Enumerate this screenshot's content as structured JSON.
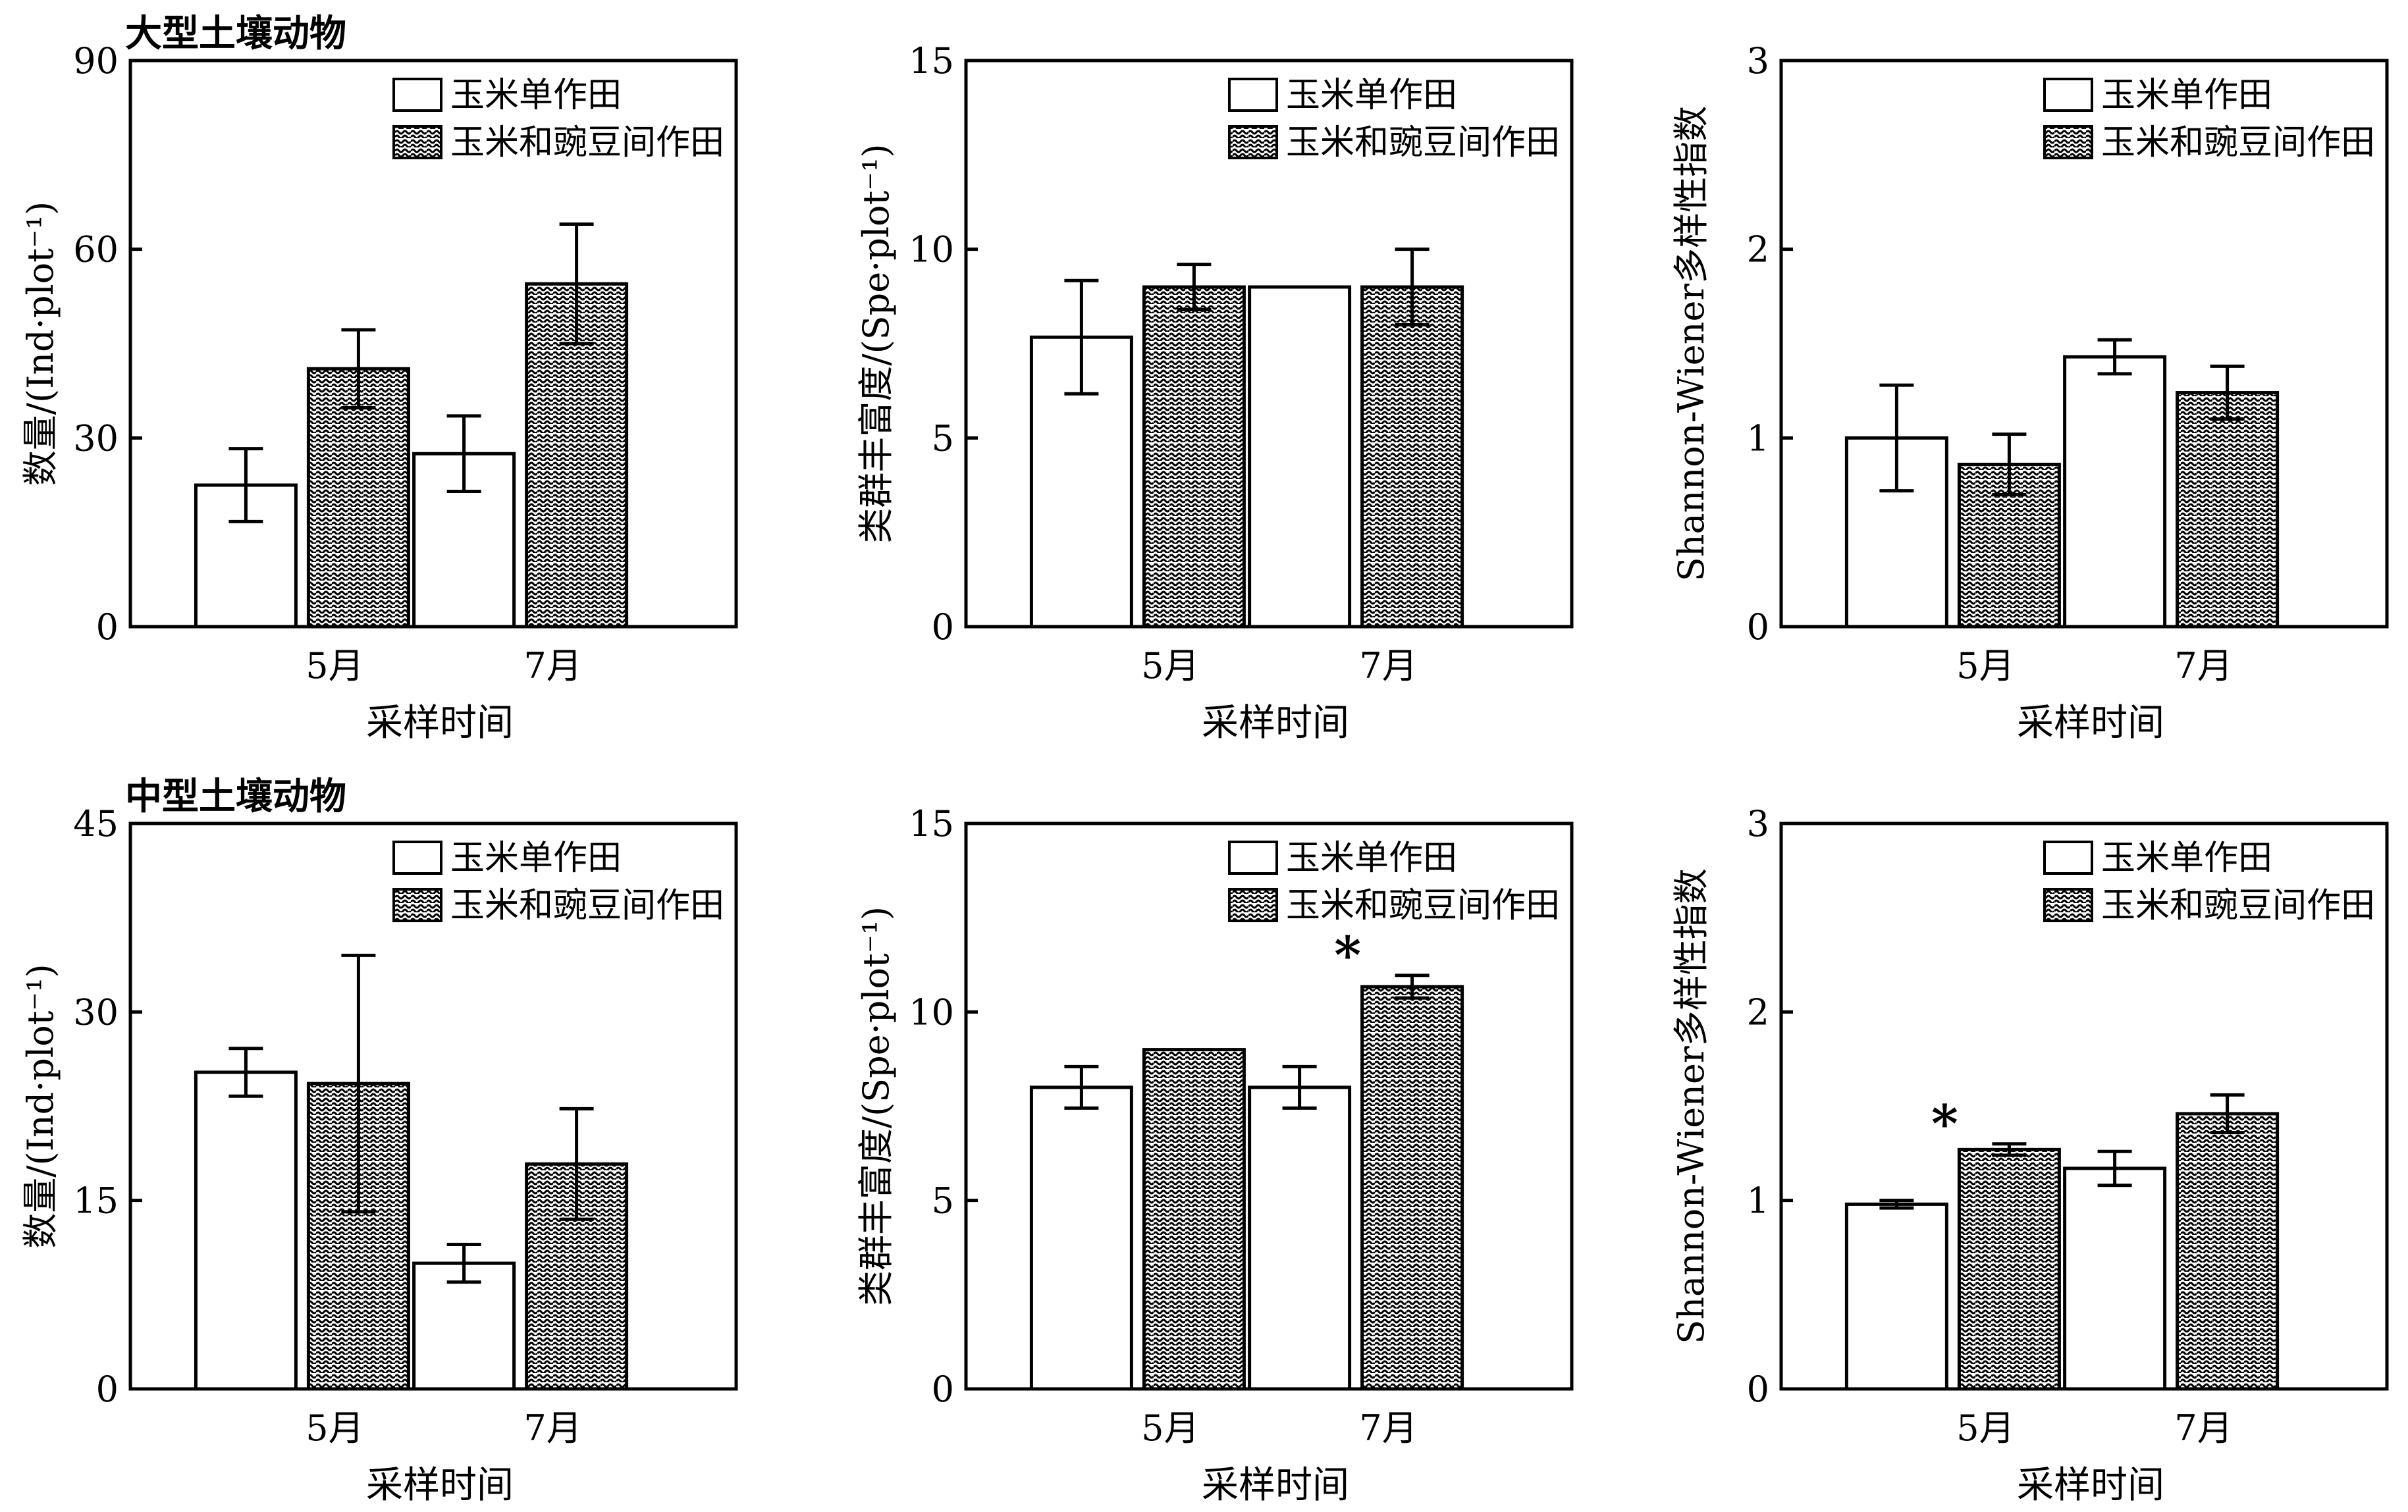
{
  "chart_data": [
    {
      "id": "macro-abundance",
      "type": "bar",
      "group_title": "大型土壤动物",
      "title": "",
      "ylabel": "数量/(Ind·plot⁻¹)",
      "xlabel": "采样时间",
      "categories": [
        "5月",
        "7月"
      ],
      "ylim": [
        0,
        90
      ],
      "yticks": [
        0,
        30,
        60,
        90
      ],
      "legend_position": "top-right",
      "series": [
        {
          "name": "玉米单作田",
          "pattern": "plain",
          "values": [
            22.5,
            27.5
          ],
          "errors": [
            5.8,
            6.0
          ]
        },
        {
          "name": "玉米和豌豆间作田",
          "pattern": "hatched",
          "values": [
            41.0,
            54.5
          ],
          "errors": [
            6.2,
            9.5
          ]
        }
      ],
      "annotations": []
    },
    {
      "id": "macro-richness",
      "type": "bar",
      "title": "",
      "ylabel": "类群丰富度/(Spe·plot⁻¹)",
      "xlabel": "采样时间",
      "categories": [
        "5月",
        "7月"
      ],
      "ylim": [
        0,
        15
      ],
      "yticks": [
        0,
        5,
        10,
        15
      ],
      "legend_position": "top-right",
      "series": [
        {
          "name": "玉米单作田",
          "pattern": "plain",
          "values": [
            7.67,
            9.0
          ],
          "errors": [
            1.5,
            0
          ]
        },
        {
          "name": "玉米和豌豆间作田",
          "pattern": "hatched",
          "values": [
            9.0,
            9.0
          ],
          "errors": [
            0.6,
            1.0
          ]
        }
      ],
      "annotations": []
    },
    {
      "id": "macro-shannon",
      "type": "bar",
      "title": "",
      "ylabel": "Shannon-Wiener多样性指数",
      "xlabel": "采样时间",
      "categories": [
        "5月",
        "7月"
      ],
      "ylim": [
        0,
        3
      ],
      "yticks": [
        0,
        1,
        2,
        3
      ],
      "legend_position": "top-right",
      "series": [
        {
          "name": "玉米单作田",
          "pattern": "plain",
          "values": [
            1.0,
            1.43
          ],
          "errors": [
            0.28,
            0.09
          ]
        },
        {
          "name": "玉米和豌豆间作田",
          "pattern": "hatched",
          "values": [
            0.86,
            1.24
          ],
          "errors": [
            0.16,
            0.14
          ]
        }
      ],
      "annotations": []
    },
    {
      "id": "meso-abundance",
      "type": "bar",
      "group_title": "中型土壤动物",
      "title": "",
      "ylabel": "数量/(Ind·plot⁻¹)",
      "xlabel": "采样时间",
      "categories": [
        "5月",
        "7月"
      ],
      "ylim": [
        0,
        45
      ],
      "yticks": [
        0,
        15,
        30,
        45
      ],
      "legend_position": "top-right",
      "series": [
        {
          "name": "玉米单作田",
          "pattern": "plain",
          "values": [
            25.2,
            10.0
          ],
          "errors": [
            1.9,
            1.5
          ]
        },
        {
          "name": "玉米和豌豆间作田",
          "pattern": "hatched",
          "values": [
            24.3,
            17.9
          ],
          "errors": [
            10.2,
            4.4
          ]
        }
      ],
      "annotations": []
    },
    {
      "id": "meso-richness",
      "type": "bar",
      "title": "",
      "ylabel": "类群丰富度/(Spe·plot⁻¹)",
      "xlabel": "采样时间",
      "categories": [
        "5月",
        "7月"
      ],
      "ylim": [
        0,
        15
      ],
      "yticks": [
        0,
        5,
        10,
        15
      ],
      "legend_position": "top-right",
      "series": [
        {
          "name": "玉米单作田",
          "pattern": "plain",
          "values": [
            8.0,
            8.0
          ],
          "errors": [
            0.55,
            0.55
          ]
        },
        {
          "name": "玉米和豌豆间作田",
          "pattern": "hatched",
          "values": [
            9.0,
            10.67
          ],
          "errors": [
            0,
            0.3
          ]
        }
      ],
      "annotations": [
        {
          "text": "*",
          "category": 1,
          "series": 1
        }
      ]
    },
    {
      "id": "meso-shannon",
      "type": "bar",
      "title": "",
      "ylabel": "Shannon-Wiener多样性指数",
      "xlabel": "采样时间",
      "categories": [
        "5月",
        "7月"
      ],
      "ylim": [
        0,
        3
      ],
      "yticks": [
        0,
        1,
        2,
        3
      ],
      "legend_position": "top-right",
      "series": [
        {
          "name": "玉米单作田",
          "pattern": "plain",
          "values": [
            0.98,
            1.17
          ],
          "errors": [
            0.02,
            0.09
          ]
        },
        {
          "name": "玉米和豌豆间作田",
          "pattern": "hatched",
          "values": [
            1.27,
            1.46
          ],
          "errors": [
            0.03,
            0.1
          ]
        }
      ],
      "annotations": [
        {
          "text": "*",
          "category": 0,
          "series": 1
        }
      ]
    }
  ]
}
